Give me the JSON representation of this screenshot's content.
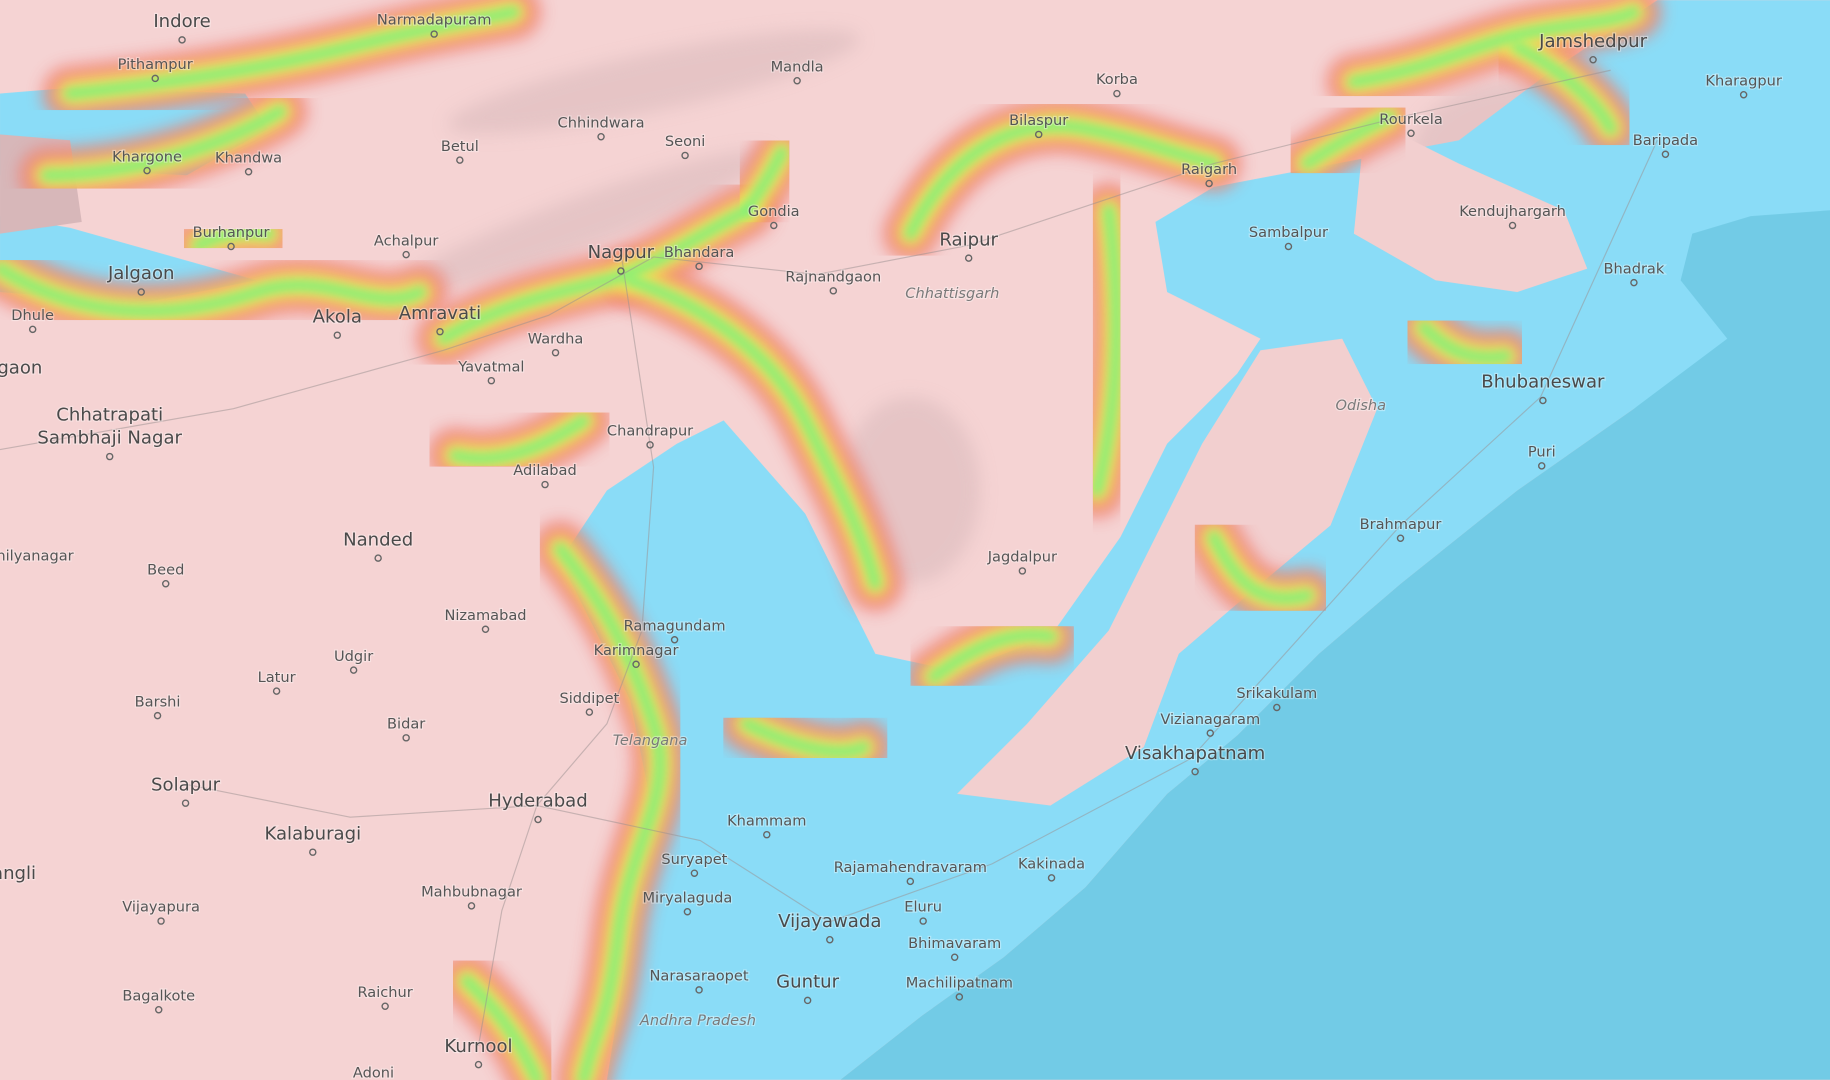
{
  "map": {
    "colors": {
      "land": "#f5d3d3",
      "lowland": "#8adcf7",
      "sea": "#72cbe6",
      "band_high": "#f07a72",
      "band_mid": "#f5ef55",
      "band_low": "#7ff07a"
    },
    "labels": [
      {
        "name": "Indore",
        "type": "major"
      },
      {
        "name": "Narmadapuram",
        "type": "city"
      },
      {
        "name": "Pithampur",
        "type": "city"
      },
      {
        "name": "Mandla",
        "type": "city"
      },
      {
        "name": "Jamshedpur",
        "type": "major"
      },
      {
        "name": "Kharagpur",
        "type": "city"
      },
      {
        "name": "Korba",
        "type": "city"
      },
      {
        "name": "Bilaspur",
        "type": "city"
      },
      {
        "name": "Rourkela",
        "type": "city"
      },
      {
        "name": "Chhindwara",
        "type": "city"
      },
      {
        "name": "Seoni",
        "type": "city"
      },
      {
        "name": "Betul",
        "type": "city"
      },
      {
        "name": "Khargone",
        "type": "city"
      },
      {
        "name": "Khandwa",
        "type": "city"
      },
      {
        "name": "Baripada",
        "type": "city"
      },
      {
        "name": "Raigarh",
        "type": "city"
      },
      {
        "name": "Gondia",
        "type": "city"
      },
      {
        "name": "Kendujhargarh",
        "type": "city"
      },
      {
        "name": "Burhanpur",
        "type": "city"
      },
      {
        "name": "Achalpur",
        "type": "city"
      },
      {
        "name": "Raipur",
        "type": "major"
      },
      {
        "name": "Sambalpur",
        "type": "city"
      },
      {
        "name": "Nagpur",
        "type": "major"
      },
      {
        "name": "Bhandara",
        "type": "city"
      },
      {
        "name": "Rajnandgaon",
        "type": "city"
      },
      {
        "name": "Chhattisgarh",
        "type": "region"
      },
      {
        "name": "Bhadrak",
        "type": "city"
      },
      {
        "name": "Jalgaon",
        "type": "major"
      },
      {
        "name": "Akola",
        "type": "major"
      },
      {
        "name": "Amravati",
        "type": "major"
      },
      {
        "name": "Dhule",
        "type": "city"
      },
      {
        "name": "Wardha",
        "type": "city"
      },
      {
        "name": "Yavatmal",
        "type": "city"
      },
      {
        "name": "gaon",
        "type": "major"
      },
      {
        "name": "Bhubaneswar",
        "type": "major"
      },
      {
        "name": "Odisha",
        "type": "region"
      },
      {
        "name": "Chhatrapati",
        "type": "major"
      },
      {
        "name": "Sambhaji Nagar",
        "type": "major"
      },
      {
        "name": "Chandrapur",
        "type": "city"
      },
      {
        "name": "Puri",
        "type": "city"
      },
      {
        "name": "Adilabad",
        "type": "city"
      },
      {
        "name": "Brahmapur",
        "type": "city"
      },
      {
        "name": "Nanded",
        "type": "major"
      },
      {
        "name": "Jagdalpur",
        "type": "city"
      },
      {
        "name": "hilyanagar",
        "type": "city"
      },
      {
        "name": "Beed",
        "type": "city"
      },
      {
        "name": "Nizamabad",
        "type": "city"
      },
      {
        "name": "Ramagundam",
        "type": "city"
      },
      {
        "name": "Karimnagar",
        "type": "city"
      },
      {
        "name": "Udgir",
        "type": "city"
      },
      {
        "name": "Latur",
        "type": "city"
      },
      {
        "name": "Srikakulam",
        "type": "city"
      },
      {
        "name": "Siddipet",
        "type": "city"
      },
      {
        "name": "Barshi",
        "type": "city"
      },
      {
        "name": "Vizianagaram",
        "type": "city"
      },
      {
        "name": "Bidar",
        "type": "city"
      },
      {
        "name": "Telangana",
        "type": "region"
      },
      {
        "name": "Visakhapatnam",
        "type": "major"
      },
      {
        "name": "Solapur",
        "type": "major"
      },
      {
        "name": "Hyderabad",
        "type": "major"
      },
      {
        "name": "Khammam",
        "type": "city"
      },
      {
        "name": "Kalaburagi",
        "type": "major"
      },
      {
        "name": "Suryapet",
        "type": "city"
      },
      {
        "name": "Kakinada",
        "type": "city"
      },
      {
        "name": "Rajamahendravaram",
        "type": "city"
      },
      {
        "name": "angli",
        "type": "major"
      },
      {
        "name": "Mahbubnagar",
        "type": "city"
      },
      {
        "name": "Miryalaguda",
        "type": "city"
      },
      {
        "name": "Vijayapura",
        "type": "city"
      },
      {
        "name": "Eluru",
        "type": "city"
      },
      {
        "name": "Vijayawada",
        "type": "major"
      },
      {
        "name": "Bhimavaram",
        "type": "city"
      },
      {
        "name": "Narasaraopet",
        "type": "city"
      },
      {
        "name": "Guntur",
        "type": "major"
      },
      {
        "name": "Machilipatnam",
        "type": "city"
      },
      {
        "name": "Raichur",
        "type": "city"
      },
      {
        "name": "Bagalkote",
        "type": "city"
      },
      {
        "name": "Andhra Pradesh",
        "type": "region"
      },
      {
        "name": "Kurnool",
        "type": "major"
      },
      {
        "name": "Adoni",
        "type": "city"
      }
    ]
  }
}
